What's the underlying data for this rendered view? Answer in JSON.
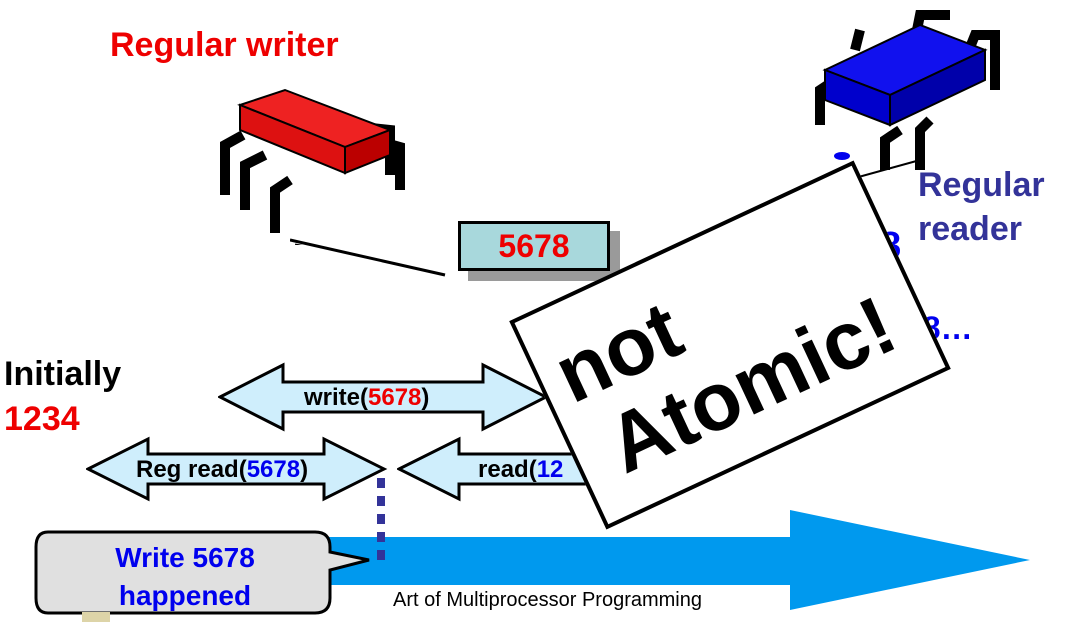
{
  "writer": {
    "label": "Regular writer",
    "color": "#ee0000"
  },
  "reader": {
    "label_line1": "Regular",
    "label_line2": "reader",
    "color": "#0000ee",
    "partial_value": "78…",
    "partial_digit": "8"
  },
  "register_value": "5678",
  "initial": {
    "label": "Initially",
    "value": "1234"
  },
  "arrows": {
    "write": {
      "prefix": "write(",
      "value": "5678",
      "suffix": ")"
    },
    "reg_read": {
      "prefix": "Reg read(",
      "value": "5678",
      "suffix": ")"
    },
    "read": {
      "prefix": "read(",
      "value": "12",
      "suffix": ""
    }
  },
  "bubble": {
    "line1": "Write 5678",
    "line2": "happened"
  },
  "stamp": {
    "line1": "not",
    "line2": "Atomic!"
  },
  "footer": "Art of Multiprocessor Programming",
  "colors": {
    "arrow_fill": "#cfeefc",
    "timeline": "#0099ee",
    "dotted": "#333399"
  }
}
